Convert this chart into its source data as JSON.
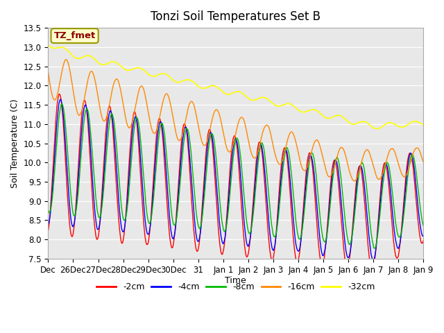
{
  "title": "Tonzi Soil Temperatures Set B",
  "xlabel": "Time",
  "ylabel": "Soil Temperature (C)",
  "ylim": [
    7.5,
    13.5
  ],
  "yticks": [
    7.5,
    8.0,
    8.5,
    9.0,
    9.5,
    10.0,
    10.5,
    11.0,
    11.5,
    12.0,
    12.5,
    13.0,
    13.5
  ],
  "xtick_labels": [
    "Dec",
    "26Dec",
    "27Dec",
    "28Dec",
    "29Dec",
    "30Dec",
    "31",
    "Jan 1",
    "Jan 2",
    "Jan 3",
    "Jan 4",
    "Jan 5",
    "Jan 6",
    "Jan 7",
    "Jan 8",
    "Jan 9"
  ],
  "colors": {
    "-2cm": "#ff0000",
    "-4cm": "#0000ff",
    "-8cm": "#00bb00",
    "-16cm": "#ff8800",
    "-32cm": "#ffff00"
  },
  "legend_label": "TZ_fmet",
  "plot_bg_color": "#e8e8e8",
  "grid_color": "#ffffff",
  "title_fontsize": 12,
  "axis_fontsize": 9,
  "tick_fontsize": 8.5
}
